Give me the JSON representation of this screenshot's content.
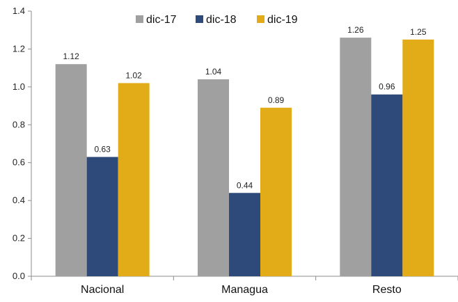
{
  "chart_data": {
    "type": "bar",
    "categories": [
      "Nacional",
      "Managua",
      "Resto"
    ],
    "series": [
      {
        "name": "dic-17",
        "values": [
          1.12,
          1.04,
          1.26
        ],
        "labels": [
          "1.12",
          "1.04",
          "1.26"
        ],
        "color": "#a0a0a0"
      },
      {
        "name": "dic-18",
        "values": [
          0.63,
          0.44,
          0.96
        ],
        "labels": [
          "0.63",
          "0.44",
          "0.96"
        ],
        "color": "#2d4a7a"
      },
      {
        "name": "dic-19",
        "values": [
          1.02,
          0.89,
          1.25
        ],
        "labels": [
          "1.02",
          "0.89",
          "1.25"
        ],
        "color": "#e1ac17"
      }
    ],
    "ylim": [
      0,
      1.4
    ],
    "yticks": [
      0.0,
      0.2,
      0.4,
      0.6,
      0.8,
      1.0,
      1.2,
      1.4
    ],
    "ytick_labels": [
      "0.0",
      "0.2",
      "0.4",
      "0.6",
      "0.8",
      "1.0",
      "1.2",
      "1.4"
    ],
    "title": "",
    "xlabel": "",
    "ylabel": "",
    "grid": false,
    "legend": "top-center"
  }
}
